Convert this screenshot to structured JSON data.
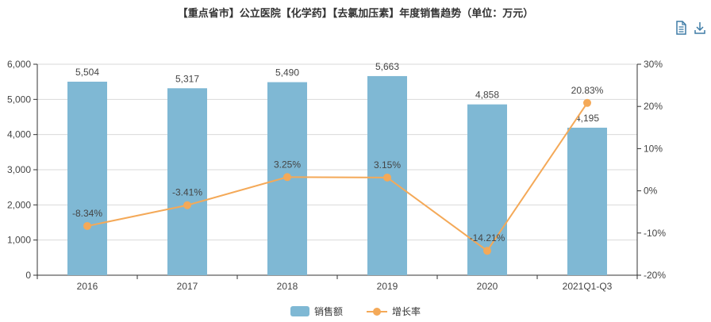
{
  "title": "【重点省市】公立医院【化学药】【去氯加压素】年度销售趋势（单位：万元）",
  "toolbar": {
    "icons": [
      "document-icon",
      "download-icon"
    ]
  },
  "colors": {
    "bar": "#7fb8d4",
    "line": "#f4a958",
    "grid": "#d9d9d9",
    "axis": "#333333"
  },
  "legend": [
    {
      "label": "销售额",
      "kind": "bar"
    },
    {
      "label": "增长率",
      "kind": "line"
    }
  ],
  "chart_data": {
    "type": "bar",
    "categories": [
      "2016",
      "2017",
      "2018",
      "2019",
      "2020",
      "2021Q1-Q3"
    ],
    "series": [
      {
        "name": "销售额",
        "type": "bar",
        "axis": "left",
        "values": [
          5504,
          5317,
          5490,
          5663,
          4858,
          4195
        ],
        "labels": [
          "5,504",
          "5,317",
          "5,490",
          "5,663",
          "4,858",
          "4,195"
        ]
      },
      {
        "name": "增长率",
        "type": "line",
        "axis": "right",
        "values": [
          -8.34,
          -3.41,
          3.25,
          3.15,
          -14.21,
          20.83
        ],
        "labels": [
          "-8.34%",
          "-3.41%",
          "3.25%",
          "3.15%",
          "-14.21%",
          "20.83%"
        ]
      }
    ],
    "y_left": {
      "min": 0,
      "max": 6000,
      "ticks": [
        "0",
        "1,000",
        "2,000",
        "3,000",
        "4,000",
        "5,000",
        "6,000"
      ]
    },
    "y_right": {
      "min": -20,
      "max": 30,
      "ticks": [
        "-20%",
        "-10%",
        "0%",
        "10%",
        "20%",
        "30%"
      ]
    },
    "grid": true,
    "legend_position": "bottom-center"
  }
}
